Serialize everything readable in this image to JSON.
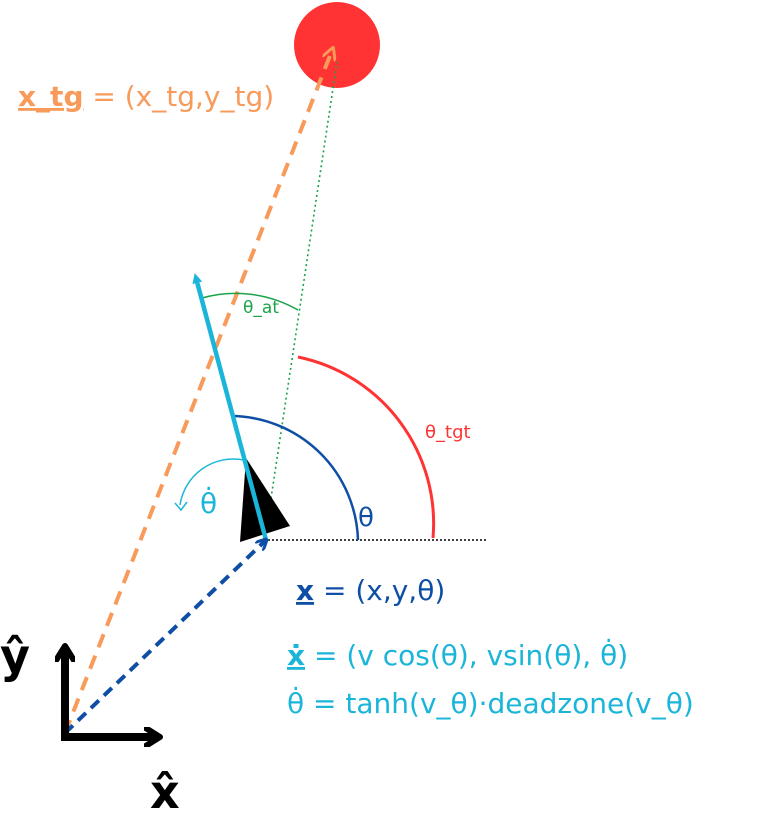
{
  "colors": {
    "orange": "#f79a5a",
    "red": "#ff3333",
    "blue": "#0e4fa5",
    "cyan": "#1bb5d9",
    "green": "#1aa34a",
    "black": "#000000"
  },
  "labels": {
    "target_sym": "x_tg",
    "target_eq": " = (x_tg,y_tg)",
    "theta_at": "θ_at",
    "theta_tgt": "θ_tgt",
    "theta": "θ",
    "theta_dot": "θ̇",
    "state_sym": "x",
    "state_eq": " = (x,y,θ)",
    "xdot_sym": "ẋ",
    "xdot_eq": " = (v cos(θ), vsin(θ), θ̇)",
    "thetadot_eq": "θ̇ = tanh(v_θ)·deadzone(v_θ)",
    "axis_y": "ŷ",
    "axis_x": "x̂"
  },
  "icons": {
    "target": "target-circle-icon",
    "robot": "robot-triangle-icon"
  }
}
